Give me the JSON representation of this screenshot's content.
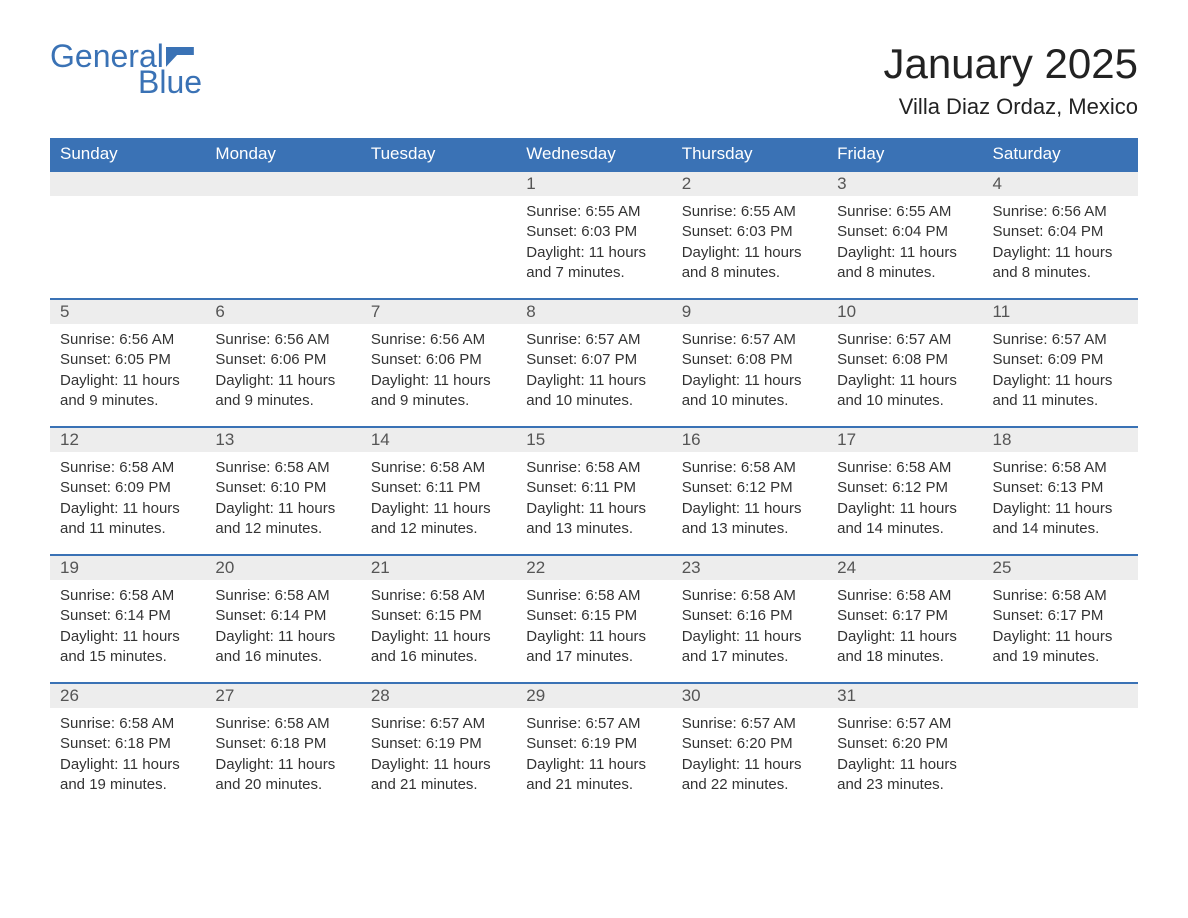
{
  "logo": {
    "general": "General",
    "blue": "Blue"
  },
  "title": "January 2025",
  "location": "Villa Diaz Ordaz, Mexico",
  "colors": {
    "brand": "#3a72b5",
    "header_bg": "#3a72b5",
    "header_text": "#ffffff",
    "daynum_bg": "#ededed",
    "daynum_border": "#3a72b5",
    "body_text": "#333333",
    "page_bg": "#ffffff"
  },
  "typography": {
    "title_fontsize": 42,
    "location_fontsize": 22,
    "dayheader_fontsize": 17,
    "daynum_fontsize": 17,
    "body_fontsize": 15
  },
  "day_headers": [
    "Sunday",
    "Monday",
    "Tuesday",
    "Wednesday",
    "Thursday",
    "Friday",
    "Saturday"
  ],
  "weeks": [
    [
      {
        "blank": true
      },
      {
        "blank": true
      },
      {
        "blank": true
      },
      {
        "num": "1",
        "sunrise": "Sunrise: 6:55 AM",
        "sunset": "Sunset: 6:03 PM",
        "daylight": "Daylight: 11 hours and 7 minutes."
      },
      {
        "num": "2",
        "sunrise": "Sunrise: 6:55 AM",
        "sunset": "Sunset: 6:03 PM",
        "daylight": "Daylight: 11 hours and 8 minutes."
      },
      {
        "num": "3",
        "sunrise": "Sunrise: 6:55 AM",
        "sunset": "Sunset: 6:04 PM",
        "daylight": "Daylight: 11 hours and 8 minutes."
      },
      {
        "num": "4",
        "sunrise": "Sunrise: 6:56 AM",
        "sunset": "Sunset: 6:04 PM",
        "daylight": "Daylight: 11 hours and 8 minutes."
      }
    ],
    [
      {
        "num": "5",
        "sunrise": "Sunrise: 6:56 AM",
        "sunset": "Sunset: 6:05 PM",
        "daylight": "Daylight: 11 hours and 9 minutes."
      },
      {
        "num": "6",
        "sunrise": "Sunrise: 6:56 AM",
        "sunset": "Sunset: 6:06 PM",
        "daylight": "Daylight: 11 hours and 9 minutes."
      },
      {
        "num": "7",
        "sunrise": "Sunrise: 6:56 AM",
        "sunset": "Sunset: 6:06 PM",
        "daylight": "Daylight: 11 hours and 9 minutes."
      },
      {
        "num": "8",
        "sunrise": "Sunrise: 6:57 AM",
        "sunset": "Sunset: 6:07 PM",
        "daylight": "Daylight: 11 hours and 10 minutes."
      },
      {
        "num": "9",
        "sunrise": "Sunrise: 6:57 AM",
        "sunset": "Sunset: 6:08 PM",
        "daylight": "Daylight: 11 hours and 10 minutes."
      },
      {
        "num": "10",
        "sunrise": "Sunrise: 6:57 AM",
        "sunset": "Sunset: 6:08 PM",
        "daylight": "Daylight: 11 hours and 10 minutes."
      },
      {
        "num": "11",
        "sunrise": "Sunrise: 6:57 AM",
        "sunset": "Sunset: 6:09 PM",
        "daylight": "Daylight: 11 hours and 11 minutes."
      }
    ],
    [
      {
        "num": "12",
        "sunrise": "Sunrise: 6:58 AM",
        "sunset": "Sunset: 6:09 PM",
        "daylight": "Daylight: 11 hours and 11 minutes."
      },
      {
        "num": "13",
        "sunrise": "Sunrise: 6:58 AM",
        "sunset": "Sunset: 6:10 PM",
        "daylight": "Daylight: 11 hours and 12 minutes."
      },
      {
        "num": "14",
        "sunrise": "Sunrise: 6:58 AM",
        "sunset": "Sunset: 6:11 PM",
        "daylight": "Daylight: 11 hours and 12 minutes."
      },
      {
        "num": "15",
        "sunrise": "Sunrise: 6:58 AM",
        "sunset": "Sunset: 6:11 PM",
        "daylight": "Daylight: 11 hours and 13 minutes."
      },
      {
        "num": "16",
        "sunrise": "Sunrise: 6:58 AM",
        "sunset": "Sunset: 6:12 PM",
        "daylight": "Daylight: 11 hours and 13 minutes."
      },
      {
        "num": "17",
        "sunrise": "Sunrise: 6:58 AM",
        "sunset": "Sunset: 6:12 PM",
        "daylight": "Daylight: 11 hours and 14 minutes."
      },
      {
        "num": "18",
        "sunrise": "Sunrise: 6:58 AM",
        "sunset": "Sunset: 6:13 PM",
        "daylight": "Daylight: 11 hours and 14 minutes."
      }
    ],
    [
      {
        "num": "19",
        "sunrise": "Sunrise: 6:58 AM",
        "sunset": "Sunset: 6:14 PM",
        "daylight": "Daylight: 11 hours and 15 minutes."
      },
      {
        "num": "20",
        "sunrise": "Sunrise: 6:58 AM",
        "sunset": "Sunset: 6:14 PM",
        "daylight": "Daylight: 11 hours and 16 minutes."
      },
      {
        "num": "21",
        "sunrise": "Sunrise: 6:58 AM",
        "sunset": "Sunset: 6:15 PM",
        "daylight": "Daylight: 11 hours and 16 minutes."
      },
      {
        "num": "22",
        "sunrise": "Sunrise: 6:58 AM",
        "sunset": "Sunset: 6:15 PM",
        "daylight": "Daylight: 11 hours and 17 minutes."
      },
      {
        "num": "23",
        "sunrise": "Sunrise: 6:58 AM",
        "sunset": "Sunset: 6:16 PM",
        "daylight": "Daylight: 11 hours and 17 minutes."
      },
      {
        "num": "24",
        "sunrise": "Sunrise: 6:58 AM",
        "sunset": "Sunset: 6:17 PM",
        "daylight": "Daylight: 11 hours and 18 minutes."
      },
      {
        "num": "25",
        "sunrise": "Sunrise: 6:58 AM",
        "sunset": "Sunset: 6:17 PM",
        "daylight": "Daylight: 11 hours and 19 minutes."
      }
    ],
    [
      {
        "num": "26",
        "sunrise": "Sunrise: 6:58 AM",
        "sunset": "Sunset: 6:18 PM",
        "daylight": "Daylight: 11 hours and 19 minutes."
      },
      {
        "num": "27",
        "sunrise": "Sunrise: 6:58 AM",
        "sunset": "Sunset: 6:18 PM",
        "daylight": "Daylight: 11 hours and 20 minutes."
      },
      {
        "num": "28",
        "sunrise": "Sunrise: 6:57 AM",
        "sunset": "Sunset: 6:19 PM",
        "daylight": "Daylight: 11 hours and 21 minutes."
      },
      {
        "num": "29",
        "sunrise": "Sunrise: 6:57 AM",
        "sunset": "Sunset: 6:19 PM",
        "daylight": "Daylight: 11 hours and 21 minutes."
      },
      {
        "num": "30",
        "sunrise": "Sunrise: 6:57 AM",
        "sunset": "Sunset: 6:20 PM",
        "daylight": "Daylight: 11 hours and 22 minutes."
      },
      {
        "num": "31",
        "sunrise": "Sunrise: 6:57 AM",
        "sunset": "Sunset: 6:20 PM",
        "daylight": "Daylight: 11 hours and 23 minutes."
      },
      {
        "blank": true
      }
    ]
  ]
}
